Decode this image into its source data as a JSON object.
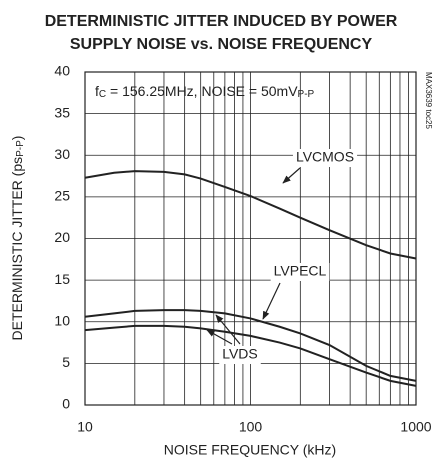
{
  "chart_data": {
    "type": "line",
    "title": "DETERMINISTIC JITTER INDUCED BY POWER\nSUPPLY NOISE vs. NOISE FREQUENCY",
    "annotation": [
      {
        "text": "f"
      },
      {
        "text": "C",
        "sub": true
      },
      {
        "text": " = 156.25MHz, NOISE = 50mV"
      },
      {
        "text": "P-P",
        "sub": true
      }
    ],
    "watermark": "MAX3639 toc25",
    "x_label": "NOISE FREQUENCY (kHz)",
    "y_label": [
      {
        "text": "DETERMINISTIC JITTER (ps"
      },
      {
        "text": "P-P",
        "sub": true
      },
      {
        "text": ")"
      }
    ],
    "x": [
      10,
      15,
      20,
      30,
      40,
      50,
      70,
      100,
      150,
      200,
      300,
      500,
      700,
      1000
    ],
    "series": [
      {
        "name": "LVCMOS",
        "color": "#222222",
        "values": [
          27.3,
          27.9,
          28.1,
          28.0,
          27.7,
          27.2,
          26.2,
          25.1,
          23.6,
          22.5,
          21.0,
          19.2,
          18.2,
          17.6
        ]
      },
      {
        "name": "LVPECL",
        "color": "#222222",
        "values": [
          10.6,
          11.0,
          11.3,
          11.4,
          11.4,
          11.3,
          11.0,
          10.4,
          9.4,
          8.6,
          7.2,
          4.7,
          3.5,
          2.9
        ]
      },
      {
        "name": "LVDS",
        "color": "#222222",
        "values": [
          9.0,
          9.3,
          9.5,
          9.5,
          9.4,
          9.2,
          8.8,
          8.3,
          7.5,
          6.8,
          5.5,
          3.9,
          2.9,
          2.3
        ]
      }
    ],
    "xscale": "log",
    "xlim": [
      10,
      1000
    ],
    "xticks": [
      10,
      100,
      1000
    ],
    "ylim": [
      0,
      40
    ],
    "yticks": [
      0,
      5,
      10,
      15,
      20,
      25,
      30,
      35,
      40
    ],
    "grid": true
  }
}
